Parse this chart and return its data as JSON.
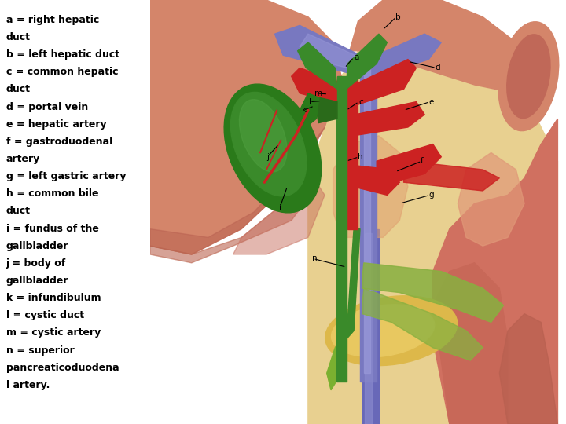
{
  "bg": "#ffffff",
  "fig_w": 7.2,
  "fig_h": 5.4,
  "dpi": 100,
  "text_lines": [
    "a = right hepatic",
    "duct",
    "b = left hepatic duct",
    "c = common hepatic",
    "duct",
    "d = portal vein",
    "e = hepatic artery",
    "f = gastroduodenal",
    "artery",
    "g = left gastric artery",
    "h = common bile",
    "duct",
    "i = fundus of the",
    "gallbladder",
    "j = body of",
    "gallbladder",
    "k = infundibulum",
    "l = cystic duct",
    "m = cystic artery",
    "n = superior",
    "pancreaticoduodena",
    "l artery."
  ],
  "liver_salmon": "#D4856A",
  "liver_mid": "#C8755E",
  "liver_dark": "#B86050",
  "retro_yellow": "#E8D090",
  "retro_light": "#F0E0A8",
  "stomach_pink": "#D07060",
  "duod_pink": "#C86858",
  "pancreas_yellow": "#DDB84A",
  "portal_blue": "#7878C0",
  "portal_light": "#9898D8",
  "artery_red": "#CC2222",
  "artery_bright": "#EE3333",
  "bile_dark": "#2A6A1A",
  "bile_mid": "#3A8A2A",
  "bile_light": "#4AAA3A",
  "gb_dark": "#1A6010",
  "gb_mid": "#2A7A1A",
  "gb_light": "#3A8A2A",
  "gb_highlight": "#50A040",
  "aorta_blue": "#6868B8",
  "aorta_light": "#8888CC",
  "gastric_green": "#88B040",
  "spleen_pink": "#C87060",
  "white": "#FFFFFF"
}
